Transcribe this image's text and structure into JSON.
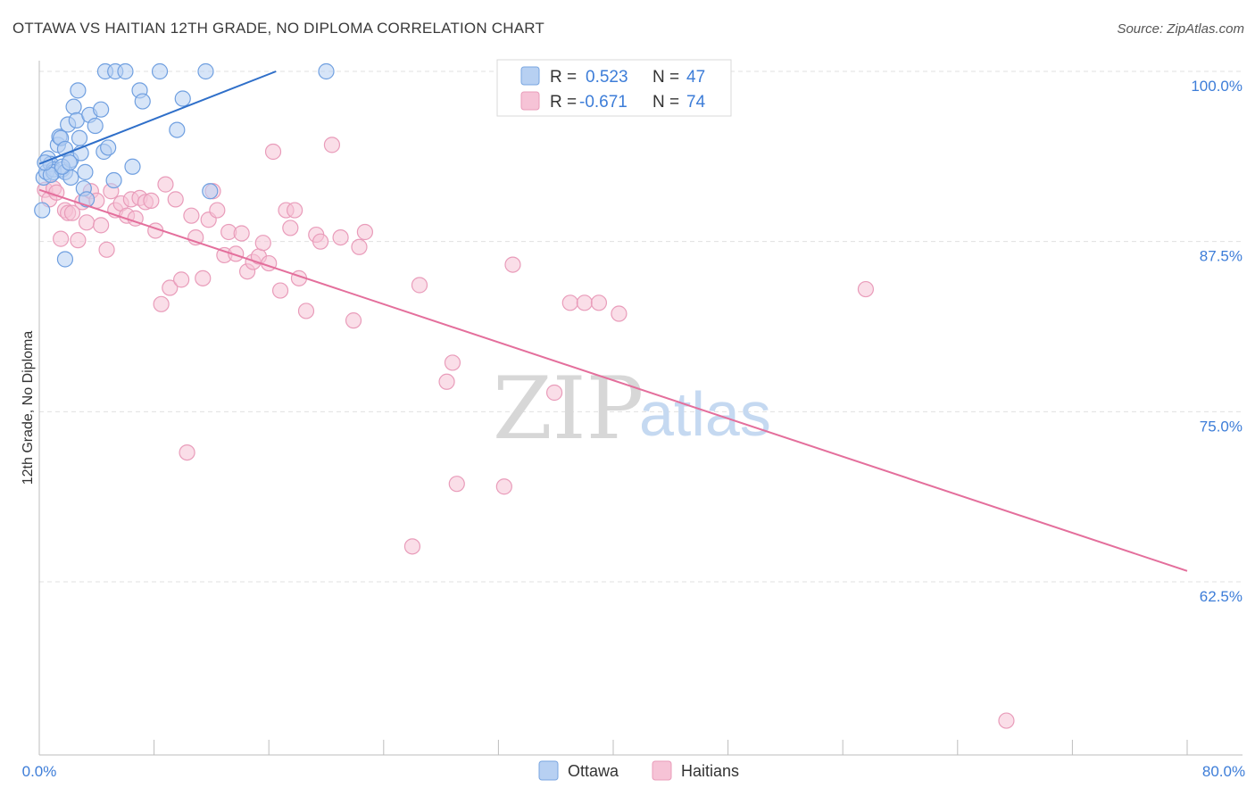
{
  "title": "OTTAWA VS HAITIAN 12TH GRADE, NO DIPLOMA CORRELATION CHART",
  "source": "Source: ZipAtlas.com",
  "watermark": {
    "zip": "ZIP",
    "atlas": "atlas"
  },
  "colors": {
    "ottawa": "#4a86d4",
    "ottawa_fill": "#b7d0f2",
    "haitians": "#e46f9c",
    "haitians_fill": "#f6c3d6",
    "grid": "#e0e0e0",
    "tick_text": "#3d7dd8"
  },
  "legend": {
    "rows": [
      {
        "r_label": "R =",
        "r_value": "0.523",
        "n_label": "N =",
        "n_value": "47"
      },
      {
        "r_label": "R =",
        "r_value": "-0.671",
        "n_label": "N =",
        "n_value": "74"
      }
    ]
  },
  "bottom_legend": {
    "ottawa": "Ottawa",
    "haitians": "Haitians"
  },
  "chart_data": {
    "type": "scatter",
    "title": "OTTAWA VS HAITIAN 12TH GRADE, NO DIPLOMA CORRELATION CHART",
    "xlabel": "",
    "ylabel": "12th Grade, No Diploma",
    "xlim": [
      0,
      80
    ],
    "ylim": [
      51,
      101
    ],
    "x_tick_labels": [
      "0.0%",
      "80.0%"
    ],
    "y_ticks": [
      100,
      87.5,
      75,
      62.5
    ],
    "y_tick_labels": [
      "100.0%",
      "87.5%",
      "75.0%",
      "62.5%"
    ],
    "grid": true,
    "legend_position": "top-center",
    "series": [
      {
        "name": "Ottawa",
        "r": 0.523,
        "n": 47,
        "trend": {
          "x": [
            0,
            16.5
          ],
          "y": [
            93.2,
            100
          ]
        },
        "points": [
          [
            0.2,
            89.8
          ],
          [
            0.3,
            92.2
          ],
          [
            0.5,
            92.6
          ],
          [
            0.6,
            93.6
          ],
          [
            0.8,
            93.2
          ],
          [
            1.0,
            92.8
          ],
          [
            1.0,
            92.6
          ],
          [
            1.3,
            94.6
          ],
          [
            1.4,
            95.2
          ],
          [
            1.5,
            95.1
          ],
          [
            1.6,
            92.8
          ],
          [
            1.8,
            94.3
          ],
          [
            1.8,
            92.6
          ],
          [
            2.0,
            96.1
          ],
          [
            2.2,
            92.2
          ],
          [
            2.2,
            93.5
          ],
          [
            2.4,
            97.4
          ],
          [
            2.6,
            96.4
          ],
          [
            2.7,
            98.6
          ],
          [
            2.8,
            95.1
          ],
          [
            2.9,
            94.0
          ],
          [
            3.1,
            91.4
          ],
          [
            3.2,
            92.6
          ],
          [
            3.3,
            90.6
          ],
          [
            3.5,
            96.8
          ],
          [
            3.9,
            96.0
          ],
          [
            4.3,
            97.2
          ],
          [
            4.5,
            94.1
          ],
          [
            4.8,
            94.4
          ],
          [
            4.6,
            100
          ],
          [
            5.3,
            100
          ],
          [
            6.0,
            100
          ],
          [
            6.5,
            93.0
          ],
          [
            5.2,
            92.0
          ],
          [
            7.0,
            98.6
          ],
          [
            7.2,
            97.8
          ],
          [
            8.4,
            100
          ],
          [
            9.6,
            95.7
          ],
          [
            10.0,
            98.0
          ],
          [
            11.6,
            100
          ],
          [
            11.9,
            91.2
          ],
          [
            20.0,
            100
          ],
          [
            1.8,
            86.2
          ],
          [
            0.8,
            92.4
          ],
          [
            1.6,
            93.0
          ],
          [
            2.1,
            93.3
          ],
          [
            0.4,
            93.3
          ]
        ]
      },
      {
        "name": "Haitians",
        "r": -0.671,
        "n": 74,
        "trend": {
          "x": [
            0,
            80
          ],
          "y": [
            91.3,
            63.3
          ]
        },
        "points": [
          [
            0.4,
            91.3
          ],
          [
            0.7,
            90.6
          ],
          [
            1.0,
            91.4
          ],
          [
            1.2,
            91.1
          ],
          [
            1.5,
            87.7
          ],
          [
            1.8,
            89.8
          ],
          [
            2.0,
            89.6
          ],
          [
            2.7,
            87.6
          ],
          [
            3.0,
            90.4
          ],
          [
            3.3,
            88.9
          ],
          [
            3.6,
            91.2
          ],
          [
            4.0,
            90.5
          ],
          [
            4.3,
            88.7
          ],
          [
            4.7,
            86.9
          ],
          [
            5.0,
            91.2
          ],
          [
            5.3,
            89.8
          ],
          [
            5.7,
            90.3
          ],
          [
            6.1,
            89.4
          ],
          [
            6.4,
            90.6
          ],
          [
            6.7,
            89.2
          ],
          [
            7.0,
            90.7
          ],
          [
            7.4,
            90.4
          ],
          [
            7.8,
            90.5
          ],
          [
            8.1,
            88.3
          ],
          [
            8.5,
            82.9
          ],
          [
            8.8,
            91.7
          ],
          [
            9.1,
            84.1
          ],
          [
            9.5,
            90.6
          ],
          [
            9.9,
            84.7
          ],
          [
            10.3,
            72.0
          ],
          [
            10.6,
            89.4
          ],
          [
            10.9,
            87.8
          ],
          [
            11.4,
            84.8
          ],
          [
            11.8,
            89.1
          ],
          [
            12.1,
            91.2
          ],
          [
            12.4,
            89.8
          ],
          [
            12.9,
            86.5
          ],
          [
            13.2,
            88.2
          ],
          [
            13.7,
            86.6
          ],
          [
            14.1,
            88.1
          ],
          [
            14.5,
            85.3
          ],
          [
            14.9,
            86.0
          ],
          [
            15.3,
            86.4
          ],
          [
            15.6,
            87.4
          ],
          [
            16.0,
            85.9
          ],
          [
            16.3,
            94.1
          ],
          [
            16.8,
            83.9
          ],
          [
            17.2,
            89.8
          ],
          [
            17.5,
            88.5
          ],
          [
            17.8,
            89.8
          ],
          [
            18.1,
            84.8
          ],
          [
            18.6,
            82.4
          ],
          [
            19.3,
            88.0
          ],
          [
            19.6,
            87.5
          ],
          [
            20.4,
            94.6
          ],
          [
            21.0,
            87.8
          ],
          [
            21.9,
            81.7
          ],
          [
            22.3,
            87.1
          ],
          [
            22.7,
            88.2
          ],
          [
            26.5,
            84.3
          ],
          [
            28.4,
            77.2
          ],
          [
            28.8,
            78.6
          ],
          [
            29.1,
            69.7
          ],
          [
            26.0,
            65.1
          ],
          [
            32.4,
            69.5
          ],
          [
            33.0,
            85.8
          ],
          [
            35.9,
            76.4
          ],
          [
            37.0,
            83.0
          ],
          [
            38.0,
            83.0
          ],
          [
            39.0,
            83.0
          ],
          [
            40.4,
            82.2
          ],
          [
            57.6,
            84.0
          ],
          [
            67.4,
            52.3
          ],
          [
            2.3,
            89.6
          ]
        ]
      }
    ]
  }
}
